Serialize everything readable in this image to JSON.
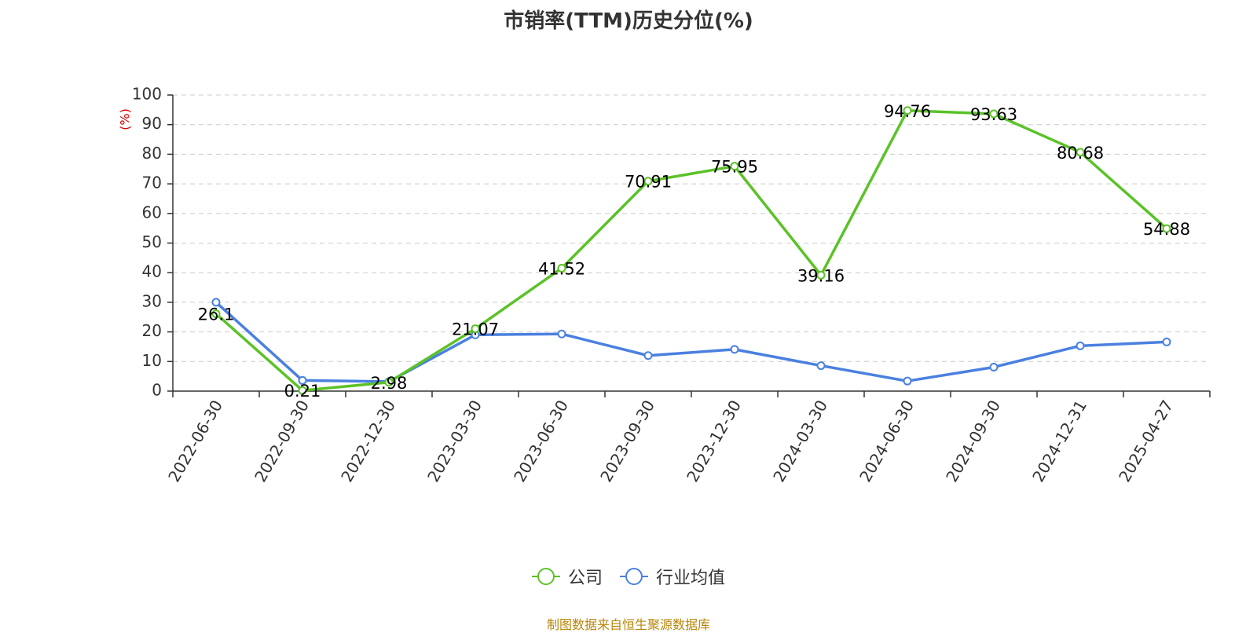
{
  "title": "市销率(TTM)历史分位(%)",
  "source": "制图数据来自恒生聚源数据库",
  "chart_data": {
    "type": "line",
    "title": "市销率(TTM)历史分位(%)",
    "ylabel": "(%)",
    "xlabel": "",
    "ylim": [
      0,
      100
    ],
    "yticks": [
      0,
      10,
      20,
      30,
      40,
      50,
      60,
      70,
      80,
      90,
      100
    ],
    "grid": true,
    "legend_position": "bottom",
    "categories": [
      "2022-06-30",
      "2022-09-30",
      "2022-12-30",
      "2023-03-30",
      "2023-06-30",
      "2023-09-30",
      "2023-12-30",
      "2024-03-30",
      "2024-06-30",
      "2024-09-30",
      "2024-12-31",
      "2025-04-27"
    ],
    "series": [
      {
        "name": "公司",
        "color": "#5bc227",
        "values": [
          26.1,
          0.21,
          2.98,
          21.07,
          41.52,
          70.91,
          75.95,
          39.16,
          94.76,
          93.63,
          80.68,
          54.88
        ],
        "labels": [
          "26.1",
          "0.21",
          "2.98",
          "21.07",
          "41.52",
          "70.91",
          "75.95",
          "39.16",
          "94.76",
          "93.63",
          "80.68",
          "54.88"
        ]
      },
      {
        "name": "行业均值",
        "color": "#4a80e0",
        "values": [
          30.0,
          3.6,
          3.2,
          19.0,
          19.3,
          12.0,
          14.1,
          8.6,
          3.4,
          8.1,
          15.3,
          16.6
        ]
      }
    ]
  }
}
